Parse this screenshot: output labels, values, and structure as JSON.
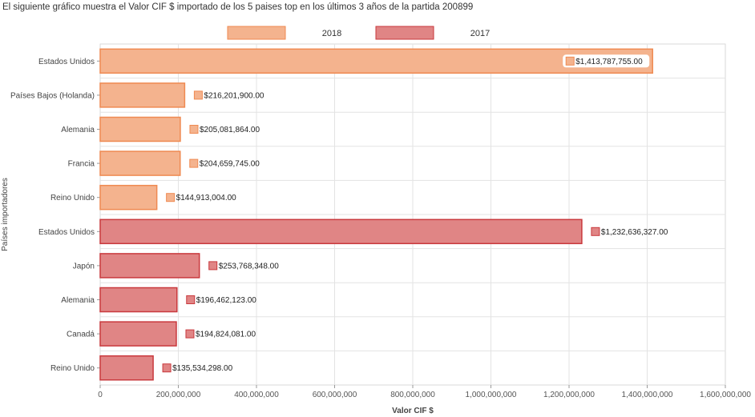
{
  "header": {
    "caption": "El siguiente gráfico muestra el Valor CIF $ importado de los 5 paises top en los últimos 3 años de la partida 200899"
  },
  "chart_data": {
    "type": "bar",
    "orientation": "horizontal",
    "xlabel": "Valor CIF $",
    "ylabel": "Países importadores",
    "xlim": [
      0,
      1600000000
    ],
    "xticks": [
      "0",
      "200,000,000",
      "400,000,000",
      "600,000,000",
      "800,000,000",
      "1,000,000,000",
      "1,200,000,000",
      "1,400,000,000",
      "1,600,000,000"
    ],
    "grid": true,
    "legend_position": "top",
    "series": [
      {
        "name": "2018",
        "color": "#f4b38e",
        "border": "#ef8a52",
        "categories": [
          "Estados Unidos",
          "Países Bajos (Holanda)",
          "Alemania",
          "Francia",
          "Reino Unido"
        ],
        "values": [
          1413787755.0,
          216201900.0,
          205081864.0,
          204659745.0,
          144913004.0
        ],
        "labels": [
          "$1,413,787,755.00",
          "$216,201,900.00",
          "$205,081,864.00",
          "$204,659,745.00",
          "$144,913,004.00"
        ]
      },
      {
        "name": "2017",
        "color": "#e08585",
        "border": "#c9393d",
        "categories": [
          "Estados Unidos",
          "Japón",
          "Alemania",
          "Canadá",
          "Reino Unido"
        ],
        "values": [
          1232636327.0,
          253768348.0,
          196462123.0,
          194824081.0,
          135534298.0
        ],
        "labels": [
          "$1,232,636,327.00",
          "$253,768,348.00",
          "$196,462,123.00",
          "$194,824,081.00",
          "$135,534,298.00"
        ]
      }
    ]
  }
}
